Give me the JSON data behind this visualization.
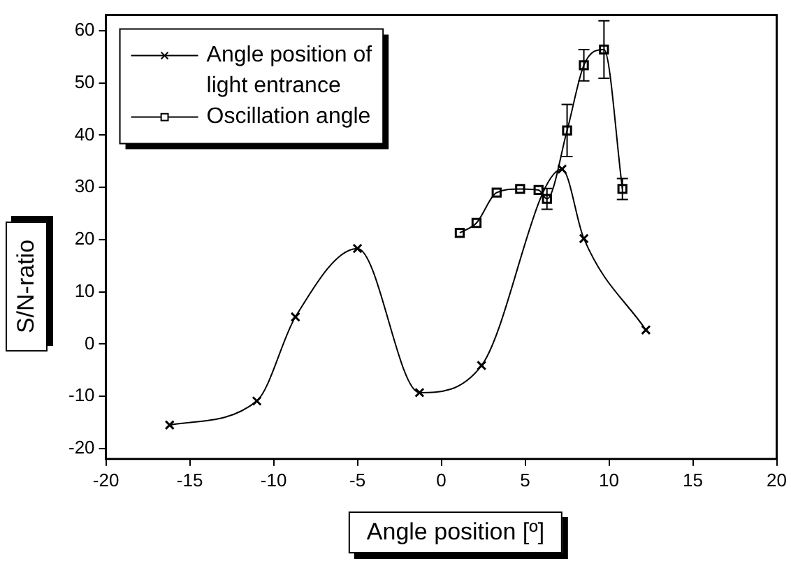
{
  "chart_data": {
    "type": "line",
    "xlabel": "Angle position [º]",
    "ylabel": "S/N-ratio",
    "xlim": [
      -20,
      20
    ],
    "xticks": [
      -20,
      -15,
      -10,
      -5,
      0,
      5,
      10,
      15,
      20
    ],
    "ylim": [
      -22,
      63
    ],
    "yticks": [
      -20,
      -10,
      0,
      10,
      20,
      30,
      40,
      50,
      60
    ],
    "grid": false,
    "legend": "top left",
    "series": [
      {
        "name": "Angle position of light entrance",
        "color": "#000000",
        "marker": "cross",
        "x": [
          -16.2,
          -11,
          -8.7,
          -5,
          -1.3,
          2.4,
          7.2,
          8.5,
          12.2
        ],
        "values": [
          -15.5,
          -10.9,
          5.2,
          18.3,
          -9.3,
          -4.1,
          33.5,
          20.2,
          2.7
        ]
      },
      {
        "name": "Oscillation angle",
        "color": "#000000",
        "marker": "square",
        "x": [
          1.1,
          2.1,
          3.3,
          4.7,
          5.8,
          6.3,
          7.5,
          8.5,
          9.7,
          10.8
        ],
        "values": [
          21.3,
          23.2,
          29,
          29.7,
          29.5,
          27.8,
          40.9,
          53.4,
          56.4,
          29.7
        ],
        "errors": [
          null,
          null,
          null,
          null,
          null,
          2,
          5,
          3,
          5.5,
          2
        ]
      }
    ]
  }
}
